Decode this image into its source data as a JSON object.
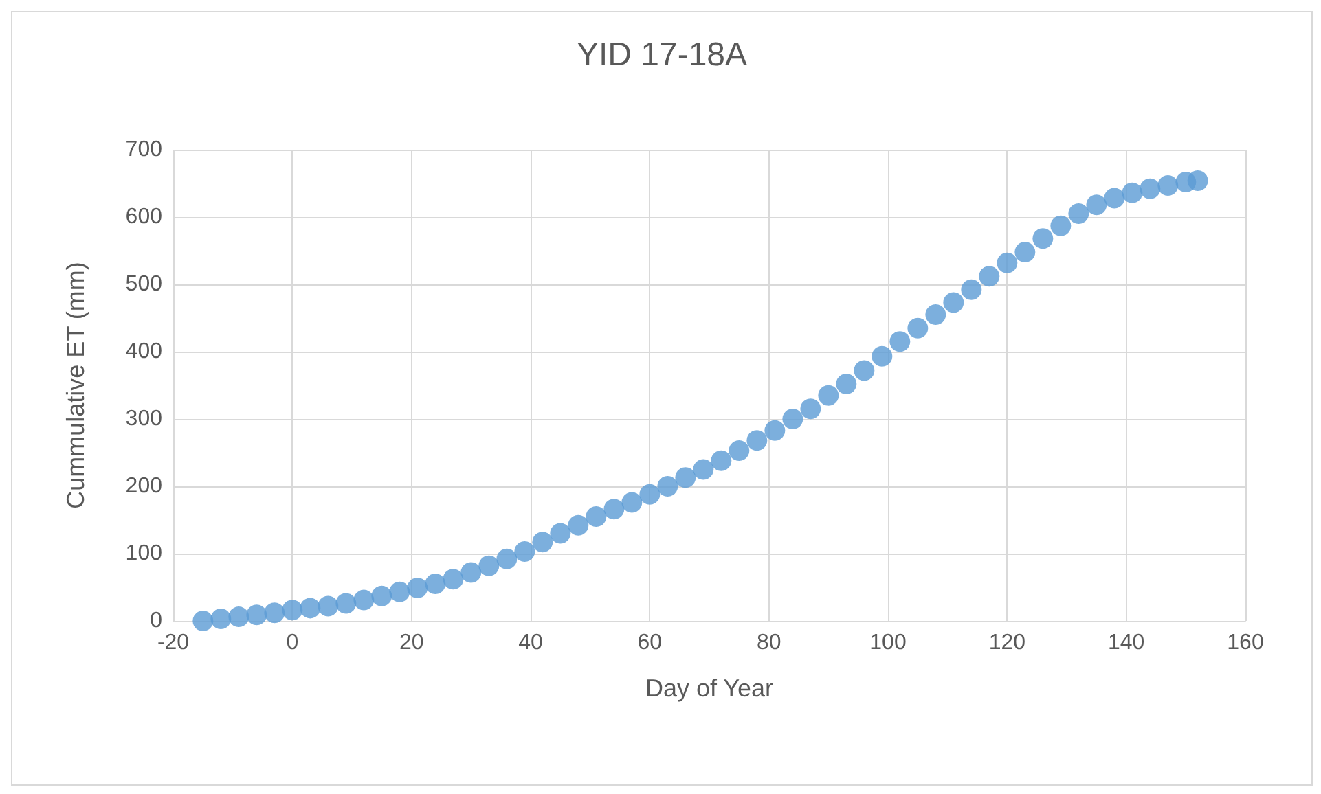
{
  "chart_data": {
    "type": "scatter",
    "title": "YID 17-18A",
    "xlabel": "Day of Year",
    "ylabel": "Cummulative ET (mm)",
    "x": [
      -15,
      -12,
      -9,
      -6,
      -3,
      0,
      3,
      6,
      9,
      12,
      15,
      18,
      21,
      24,
      27,
      30,
      33,
      36,
      39,
      42,
      45,
      48,
      51,
      54,
      57,
      60,
      63,
      66,
      69,
      72,
      75,
      78,
      81,
      84,
      87,
      90,
      93,
      96,
      99,
      102,
      105,
      108,
      111,
      114,
      117,
      120,
      123,
      126,
      129,
      132,
      135,
      138,
      141,
      144,
      147,
      150,
      152
    ],
    "series": [
      {
        "color": "#5b9bd5",
        "values": [
          0,
          3,
          6,
          9,
          12,
          16,
          19,
          22,
          26,
          31,
          37,
          43,
          49,
          55,
          62,
          72,
          82,
          92,
          103,
          117,
          130,
          142,
          155,
          166,
          176,
          188,
          200,
          213,
          225,
          238,
          253,
          268,
          283,
          300,
          315,
          335,
          352,
          372,
          393,
          415,
          435,
          455,
          473,
          492,
          512,
          532,
          548,
          568,
          587,
          605,
          618,
          628,
          636,
          642,
          647,
          652,
          654
        ]
      }
    ],
    "xlim": [
      -20,
      160
    ],
    "xticks": [
      -20,
      0,
      20,
      40,
      60,
      80,
      100,
      120,
      140,
      160
    ],
    "ylim": [
      0,
      700
    ],
    "yticks": [
      0,
      100,
      200,
      300,
      400,
      500,
      600,
      700
    ],
    "grid": true,
    "marker": "circle"
  }
}
